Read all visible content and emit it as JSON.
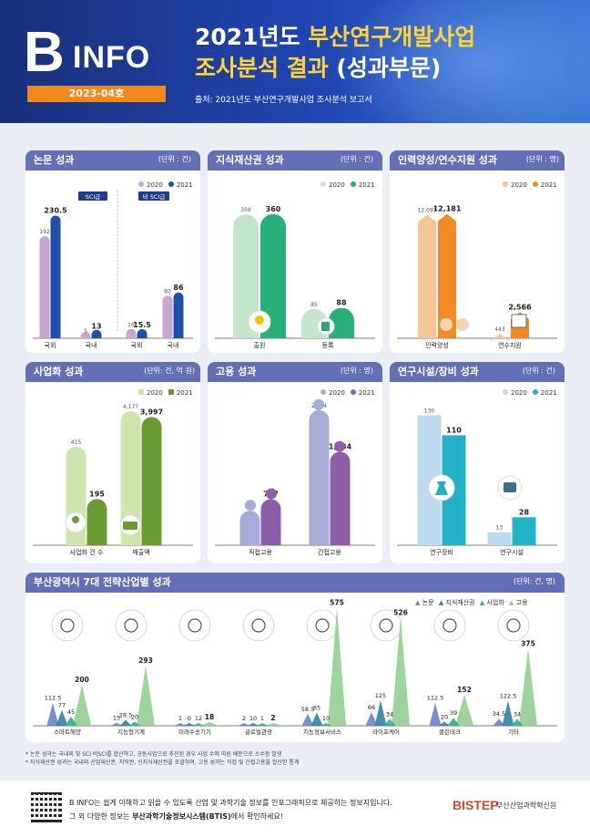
{
  "header": {
    "logo_b": "B",
    "logo_info": "INFO",
    "issue": "2023-04호",
    "title_line1_pre": "2021년도 ",
    "title_line1_hl": "부산연구개발사업",
    "title_line2_hl": "조사분석 결과",
    "title_line2_post": " (성과부문)",
    "source": "출처: 2021년도 부산연구개발사업 조사분석 보고서"
  },
  "colors": {
    "panel_title": "#6470b6",
    "paper_2020": "#c9a5d1",
    "paper_2021": "#1f4fa8",
    "ip_2020": "#c4e5cc",
    "ip_2021": "#27b07a",
    "hr_2020": "#f7c596",
    "hr_2021": "#f28a26",
    "com_2020": "#cfe5ac",
    "com_2021": "#6c9a34",
    "emp_2020": "#a7acd6",
    "emp_2021": "#8e5ea8",
    "fac_2020": "#bcd9ef",
    "fac_2021": "#22b2c7",
    "s_paper": "#6a7cc9",
    "s_ip": "#2a7fa0",
    "s_com": "#2faa8e",
    "s_emp": "#8fce8f"
  },
  "panels": {
    "paper": {
      "title": "논문 성과",
      "unit": "(단위 : 건)",
      "legend": [
        "2020",
        "2021"
      ]
    },
    "ip": {
      "title": "지식재산권 성과",
      "unit": "(단위 : 건)",
      "legend": [
        "2020",
        "2021"
      ]
    },
    "hr": {
      "title": "인력양성/연수지원 성과",
      "unit": "(단위 : 명)",
      "legend": [
        "2020",
        "2021"
      ]
    },
    "com": {
      "title": "사업화 성과",
      "unit": "(단위: 건, 억 원)",
      "legend": [
        "2020",
        "2021"
      ]
    },
    "emp": {
      "title": "고용 성과",
      "unit": "(단위 : 명)",
      "legend": [
        "2020",
        "2021"
      ]
    },
    "fac": {
      "title": "연구시설/장비 성과",
      "unit": "(단위 : 건)",
      "legend": [
        "2020",
        "2021"
      ]
    },
    "ind": {
      "title": "부산광역시 7대 전략산업별 성과",
      "unit": "(단위: 건, 명)",
      "legend": [
        "논문",
        "지식재산권",
        "사업화",
        "고용"
      ]
    }
  },
  "chart_data": [
    {
      "id": "paper",
      "type": "bar",
      "title": "논문 성과",
      "groups": [
        "SCI급",
        "비 SCI급"
      ],
      "categories": [
        "국외",
        "국내",
        "국외",
        "국내"
      ],
      "series": [
        {
          "name": "2020",
          "values": [
            192,
            5,
            16,
            80
          ]
        },
        {
          "name": "2021",
          "values": [
            230.5,
            13,
            15.5,
            86
          ]
        }
      ],
      "labels": {
        "2020": [
          "192",
          "5",
          "16",
          "80"
        ],
        "2021": [
          "230.5",
          "13",
          "15.5",
          "86"
        ]
      },
      "ylim": [
        0,
        240
      ]
    },
    {
      "id": "ip",
      "type": "bar",
      "title": "지식재산권 성과",
      "categories": [
        "출원",
        "등록"
      ],
      "series": [
        {
          "name": "2020",
          "values": [
            359,
            85
          ]
        },
        {
          "name": "2021",
          "values": [
            360,
            88
          ]
        }
      ],
      "labels": {
        "2020": [
          "359",
          "85"
        ],
        "2021": [
          "360",
          "88"
        ]
      },
      "ylim": [
        0,
        370
      ]
    },
    {
      "id": "hr",
      "type": "bar",
      "title": "인력양성/연수지원 성과",
      "categories": [
        "인력양성",
        "연수지원"
      ],
      "series": [
        {
          "name": "2020",
          "values": [
            12097,
            443
          ]
        },
        {
          "name": "2021",
          "values": [
            12181,
            2566
          ]
        }
      ],
      "labels": {
        "2020": [
          "12,097",
          "443"
        ],
        "2021": [
          "12,181",
          "2,566"
        ]
      },
      "ylim": [
        0,
        12500
      ]
    },
    {
      "id": "com",
      "type": "bar",
      "title": "사업화 성과",
      "categories": [
        "사업화 건 수",
        "매출액"
      ],
      "series": [
        {
          "name": "2020",
          "values": [
            415,
            4177
          ]
        },
        {
          "name": "2021",
          "values": [
            195,
            3997
          ]
        }
      ],
      "labels": {
        "2020": [
          "415",
          "4,177"
        ],
        "2021": [
          "195",
          "3,997"
        ]
      },
      "note": "panel uses independent scales per category"
    },
    {
      "id": "emp",
      "type": "bar",
      "title": "고용 성과",
      "categories": [
        "직접고용",
        "간접고용"
      ],
      "series": [
        {
          "name": "2020",
          "values": [
            530,
            2074
          ]
        },
        {
          "name": "2021",
          "values": [
            707,
            1434
          ]
        }
      ],
      "labels": {
        "2020": [
          "530",
          "2,074"
        ],
        "2021": [
          "707",
          "1,434"
        ]
      },
      "ylim": [
        0,
        2100
      ]
    },
    {
      "id": "fac",
      "type": "bar",
      "title": "연구시설/장비 성과",
      "categories": [
        "연구장비",
        "연구시설"
      ],
      "series": [
        {
          "name": "2020",
          "values": [
            130,
            13
          ]
        },
        {
          "name": "2021",
          "values": [
            110,
            28
          ]
        }
      ],
      "labels": {
        "2020": [
          "130",
          "13"
        ],
        "2021": [
          "110",
          "28"
        ]
      },
      "ylim": [
        0,
        135
      ]
    },
    {
      "id": "ind",
      "type": "area",
      "title": "부산광역시 7대 전략산업별 성과",
      "categories": [
        "스마트해양",
        "지능형기계",
        "미래수송기기",
        "글로벌관광",
        "지능정보서비스",
        "라이프케어",
        "클린테크",
        "기타"
      ],
      "series": [
        {
          "name": "논문",
          "values": [
            112.5,
            15,
            1,
            2,
            58.5,
            66,
            112.5,
            34.5
          ]
        },
        {
          "name": "지식재산권",
          "values": [
            77,
            28.5,
            0,
            10,
            65,
            125,
            20,
            122.5
          ]
        },
        {
          "name": "사업화",
          "values": [
            45,
            20,
            12,
            1,
            10,
            34,
            39,
            34
          ]
        },
        {
          "name": "고용",
          "values": [
            200,
            293,
            18,
            2,
            575,
            526,
            152,
            375
          ]
        }
      ],
      "ylim": [
        0,
        600
      ]
    }
  ],
  "footnotes": [
    "* 논문 성과는 국내외 및 SCI·비SCI를 합산하고, 공동사업으로 추진된 경우 사업 수에 따른 배분으로 소수점 발생",
    "* 지식재산권 성과는 국내외 산업재산권, 저작권, 신지식재산권을 포괄하며, 고용 성과는 직접 및 간접고용을 합산한 통계"
  ],
  "footer": {
    "line1_a": "B INFO는 쉽게 이해하고 읽을 수 있도록 산업 및 과학기술 정보를 인포그래픽으로 제공하는 정보지입니다.",
    "line2_a": "그 외 다양한 정보는 ",
    "line2_b": "부산과학기술정보시스템(BTIS)",
    "line2_c": "에서 확인하세요!",
    "org_logo": "BISTEP",
    "org_name": "부산산업과학혁신원"
  }
}
